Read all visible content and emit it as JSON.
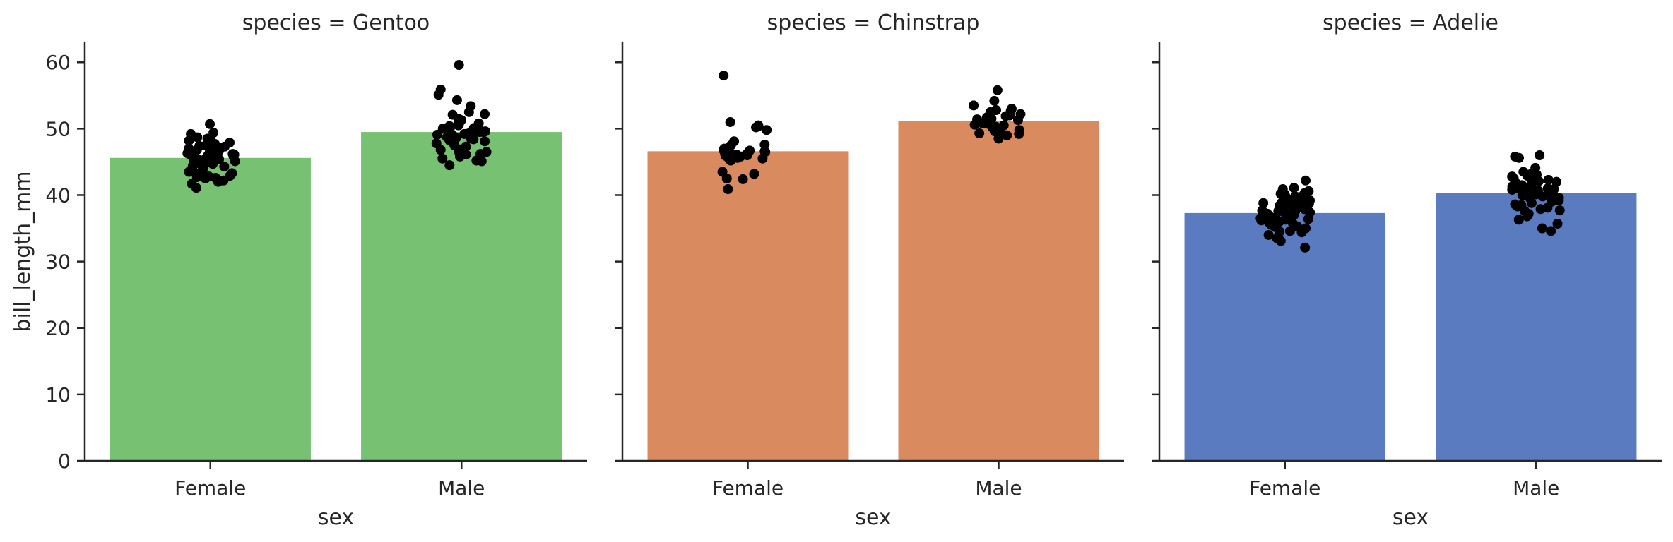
{
  "chart_data": {
    "type": "bar",
    "ylabel": "bill_length_mm",
    "ylim": [
      0,
      63
    ],
    "yticks": [
      0,
      10,
      20,
      30,
      40,
      50,
      60
    ],
    "point_color": "#000000",
    "panels": [
      {
        "title": "species = Gentoo",
        "xlabel": "sex",
        "color": "#77c172",
        "categories": [
          "Female",
          "Male"
        ],
        "values": [
          45.6,
          49.5
        ],
        "points": [
          [
            50.7,
            49.4,
            49.2,
            48.7,
            48.5,
            48.4,
            48.2,
            47.9,
            47.7,
            47.5,
            47.4,
            47.3,
            47.2,
            47.0,
            46.9,
            46.8,
            46.7,
            46.6,
            46.5,
            46.5,
            46.4,
            46.3,
            46.2,
            46.1,
            46.0,
            45.9,
            45.8,
            45.7,
            45.6,
            45.5,
            45.4,
            45.3,
            45.2,
            45.1,
            45.0,
            44.9,
            44.7,
            44.5,
            44.4,
            44.3,
            44.1,
            43.8,
            43.5,
            43.3,
            43.2,
            42.9,
            42.8,
            42.7,
            42.6,
            42.5,
            42.2,
            42.0,
            41.7,
            41.1
          ],
          [
            59.6,
            55.9,
            55.1,
            54.3,
            53.4,
            52.5,
            52.2,
            52.1,
            51.5,
            51.3,
            51.1,
            50.8,
            50.7,
            50.5,
            50.4,
            50.2,
            50.1,
            50.0,
            50.0,
            49.9,
            49.8,
            49.6,
            49.5,
            49.5,
            49.4,
            49.3,
            49.2,
            49.1,
            49.0,
            48.8,
            48.7,
            48.6,
            48.5,
            48.4,
            48.2,
            48.1,
            47.8,
            47.5,
            47.3,
            46.9,
            46.8,
            46.5,
            46.4,
            46.2,
            46.1,
            45.8,
            45.5,
            45.2,
            45.1,
            44.5
          ]
        ]
      },
      {
        "title": "species = Chinstrap",
        "xlabel": "sex",
        "color": "#d98a5f",
        "categories": [
          "Female",
          "Male"
        ],
        "values": [
          46.6,
          51.1
        ],
        "points": [
          [
            58.0,
            51.0,
            50.5,
            50.3,
            50.2,
            49.8,
            48.1,
            47.6,
            47.5,
            47.0,
            46.9,
            46.8,
            46.7,
            46.6,
            46.5,
            46.4,
            46.3,
            46.2,
            46.1,
            46.0,
            45.9,
            45.8,
            45.7,
            45.6,
            45.5,
            45.4,
            45.2,
            43.5,
            43.2,
            42.5,
            42.4,
            40.9
          ],
          [
            55.8,
            54.2,
            53.5,
            53.0,
            52.8,
            52.7,
            52.5,
            52.2,
            52.0,
            51.9,
            51.7,
            51.5,
            51.4,
            51.3,
            51.0,
            50.9,
            50.8,
            50.7,
            50.6,
            50.5,
            50.3,
            50.2,
            50.0,
            49.8,
            49.7,
            49.6,
            49.3,
            49.2,
            49.0,
            48.5
          ]
        ]
      },
      {
        "title": "species = Adelie",
        "xlabel": "sex",
        "color": "#5a7bbf",
        "categories": [
          "Female",
          "Male"
        ],
        "values": [
          37.3,
          40.3
        ],
        "points": [
          [
            42.2,
            41.1,
            40.9,
            40.6,
            40.3,
            40.2,
            40.1,
            39.8,
            39.7,
            39.6,
            39.5,
            39.2,
            39.1,
            39.0,
            38.9,
            38.8,
            38.7,
            38.6,
            38.5,
            38.4,
            38.3,
            38.2,
            38.1,
            38.0,
            37.9,
            37.8,
            37.7,
            37.6,
            37.5,
            37.4,
            37.3,
            37.2,
            37.0,
            36.9,
            36.8,
            36.7,
            36.6,
            36.5,
            36.4,
            36.3,
            36.2,
            36.0,
            35.9,
            35.7,
            35.5,
            35.3,
            35.2,
            35.0,
            34.6,
            34.5,
            34.4,
            34.0,
            33.5,
            33.1,
            32.1
          ],
          [
            46.0,
            45.8,
            45.6,
            44.1,
            43.5,
            43.2,
            43.1,
            42.9,
            42.8,
            42.5,
            42.3,
            42.2,
            42.1,
            42.0,
            41.8,
            41.6,
            41.5,
            41.4,
            41.3,
            41.1,
            41.0,
            40.9,
            40.8,
            40.7,
            40.6,
            40.5,
            40.3,
            40.2,
            40.1,
            40.0,
            39.8,
            39.7,
            39.6,
            39.5,
            39.2,
            39.0,
            38.8,
            38.6,
            38.5,
            38.3,
            38.1,
            37.9,
            37.7,
            37.6,
            37.2,
            36.8,
            36.3,
            35.7,
            35.0,
            34.6
          ]
        ]
      }
    ]
  }
}
